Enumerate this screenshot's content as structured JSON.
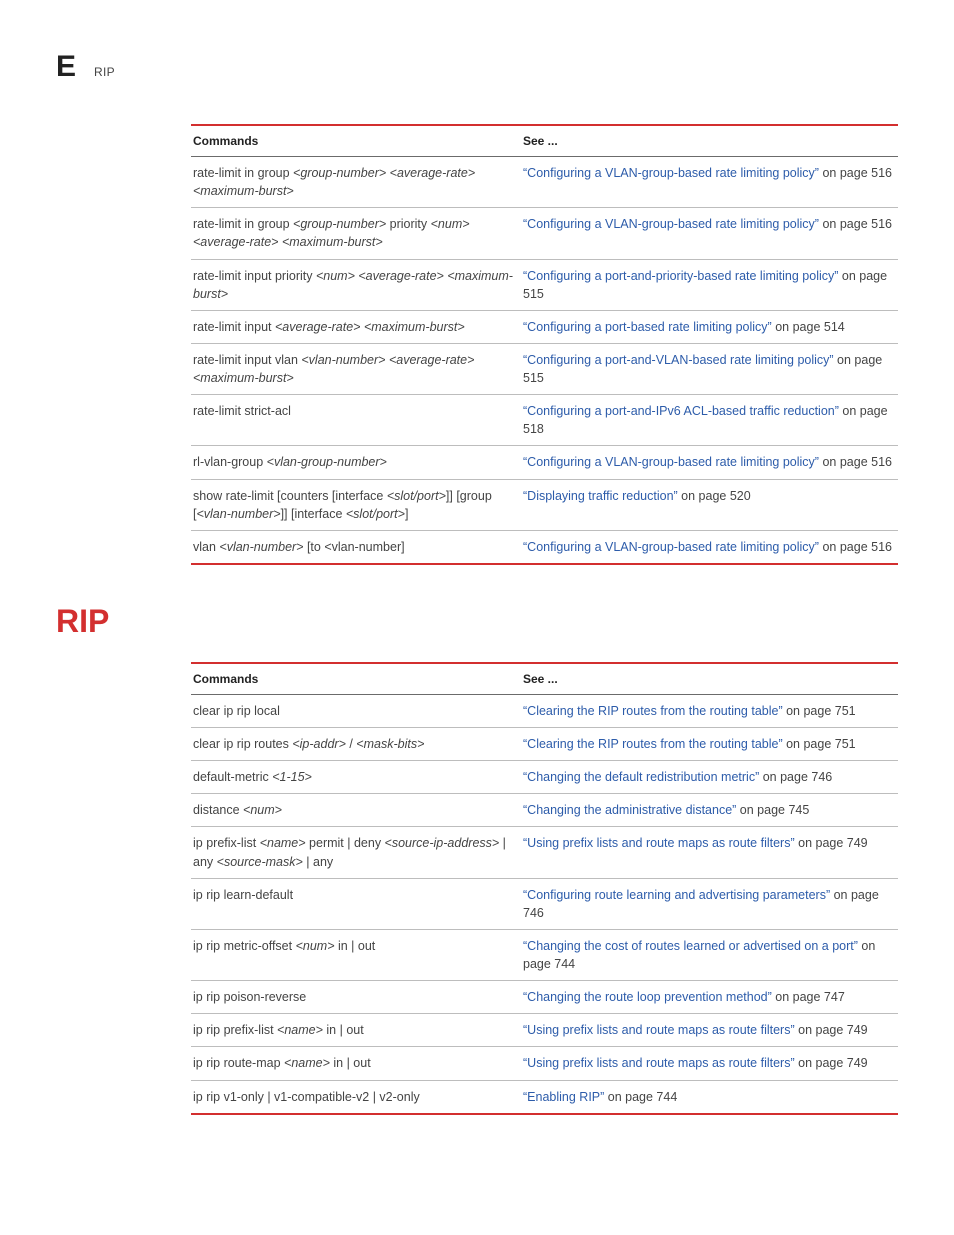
{
  "header": {
    "letter": "E",
    "label": "RIP"
  },
  "section_heading": "RIP",
  "table_headers": {
    "commands": "Commands",
    "see": "See ..."
  },
  "table1": {
    "rows": [
      {
        "cmd": "rate-limit in group <group-number> <average-rate> <maximum-burst>",
        "link": "“Configuring a VLAN-group-based rate limiting policy”",
        "tail": " on page 516"
      },
      {
        "cmd": "rate-limit in group <group-number> priority <num> <average-rate> <maximum-burst>",
        "link": "“Configuring a VLAN-group-based rate limiting policy”",
        "tail": " on page 516"
      },
      {
        "cmd": "rate-limit input priority <num> <average-rate> <maximum-burst>",
        "link": "“Configuring a port-and-priority-based rate limiting policy”",
        "tail": " on page 515"
      },
      {
        "cmd": "rate-limit input <average-rate> <maximum-burst>",
        "link": "“Configuring a port-based rate limiting policy”",
        "tail": " on page 514"
      },
      {
        "cmd": "rate-limit input vlan <vlan-number> <average-rate> <maximum-burst>",
        "link": "“Configuring a port-and-VLAN-based rate limiting policy”",
        "tail": " on page 515"
      },
      {
        "cmd": "rate-limit strict-acl",
        "link": "“Configuring a port-and-IPv6 ACL-based traffic reduction”",
        "tail": " on page 518"
      },
      {
        "cmd": "rl-vlan-group <vlan-group-number>",
        "link": "“Configuring a VLAN-group-based rate limiting policy”",
        "tail": " on page 516"
      },
      {
        "cmd": "show rate-limit [counters [interface <slot/port>]] [group [<vlan-number>]]  [interface <slot/port>]",
        "link": "“Displaying traffic reduction”",
        "tail": " on page 520"
      },
      {
        "cmd": "vlan <vlan-number> [to <vlan-number]",
        "link": "“Configuring a VLAN-group-based rate limiting policy”",
        "tail": " on page 516"
      }
    ]
  },
  "table2": {
    "rows": [
      {
        "cmd": "clear ip rip local",
        "link": "“Clearing the RIP routes from the routing table”",
        "tail": " on page 751"
      },
      {
        "cmd": "clear ip rip routes <ip-addr> / <mask-bits>",
        "link": "“Clearing the RIP routes from the routing table”",
        "tail": " on page 751"
      },
      {
        "cmd": "default-metric <1-15>",
        "link": "“Changing the default redistribution metric”",
        "tail": " on page 746"
      },
      {
        "cmd": "distance <num>",
        "link": "“Changing the administrative distance”",
        "tail": " on page 745"
      },
      {
        "cmd": "ip prefix-list <name> permit | deny <source-ip-address> | any <source-mask> | any",
        "link": "“Using prefix lists and route maps as route filters”",
        "tail": " on page 749"
      },
      {
        "cmd": "ip rip learn-default",
        "link": "“Configuring route learning and advertising parameters”",
        "tail": " on page 746"
      },
      {
        "cmd": "ip rip metric-offset <num> in | out",
        "link": "“Changing the cost of routes learned or advertised on a port”",
        "tail": " on page 744"
      },
      {
        "cmd": "ip rip poison-reverse",
        "link": "“Changing the route loop prevention method”",
        "tail": " on page 747"
      },
      {
        "cmd": "ip rip prefix-list <name> in | out",
        "link": "“Using prefix lists and route maps as route filters”",
        "tail": " on page 749"
      },
      {
        "cmd": "ip rip route-map <name> in | out",
        "link": "“Using prefix lists and route maps as route filters”",
        "tail": " on page 749"
      },
      {
        "cmd": "ip rip v1-only | v1-compatible-v2 | v2-only",
        "link": "“Enabling RIP”",
        "tail": " on page 744"
      }
    ]
  }
}
